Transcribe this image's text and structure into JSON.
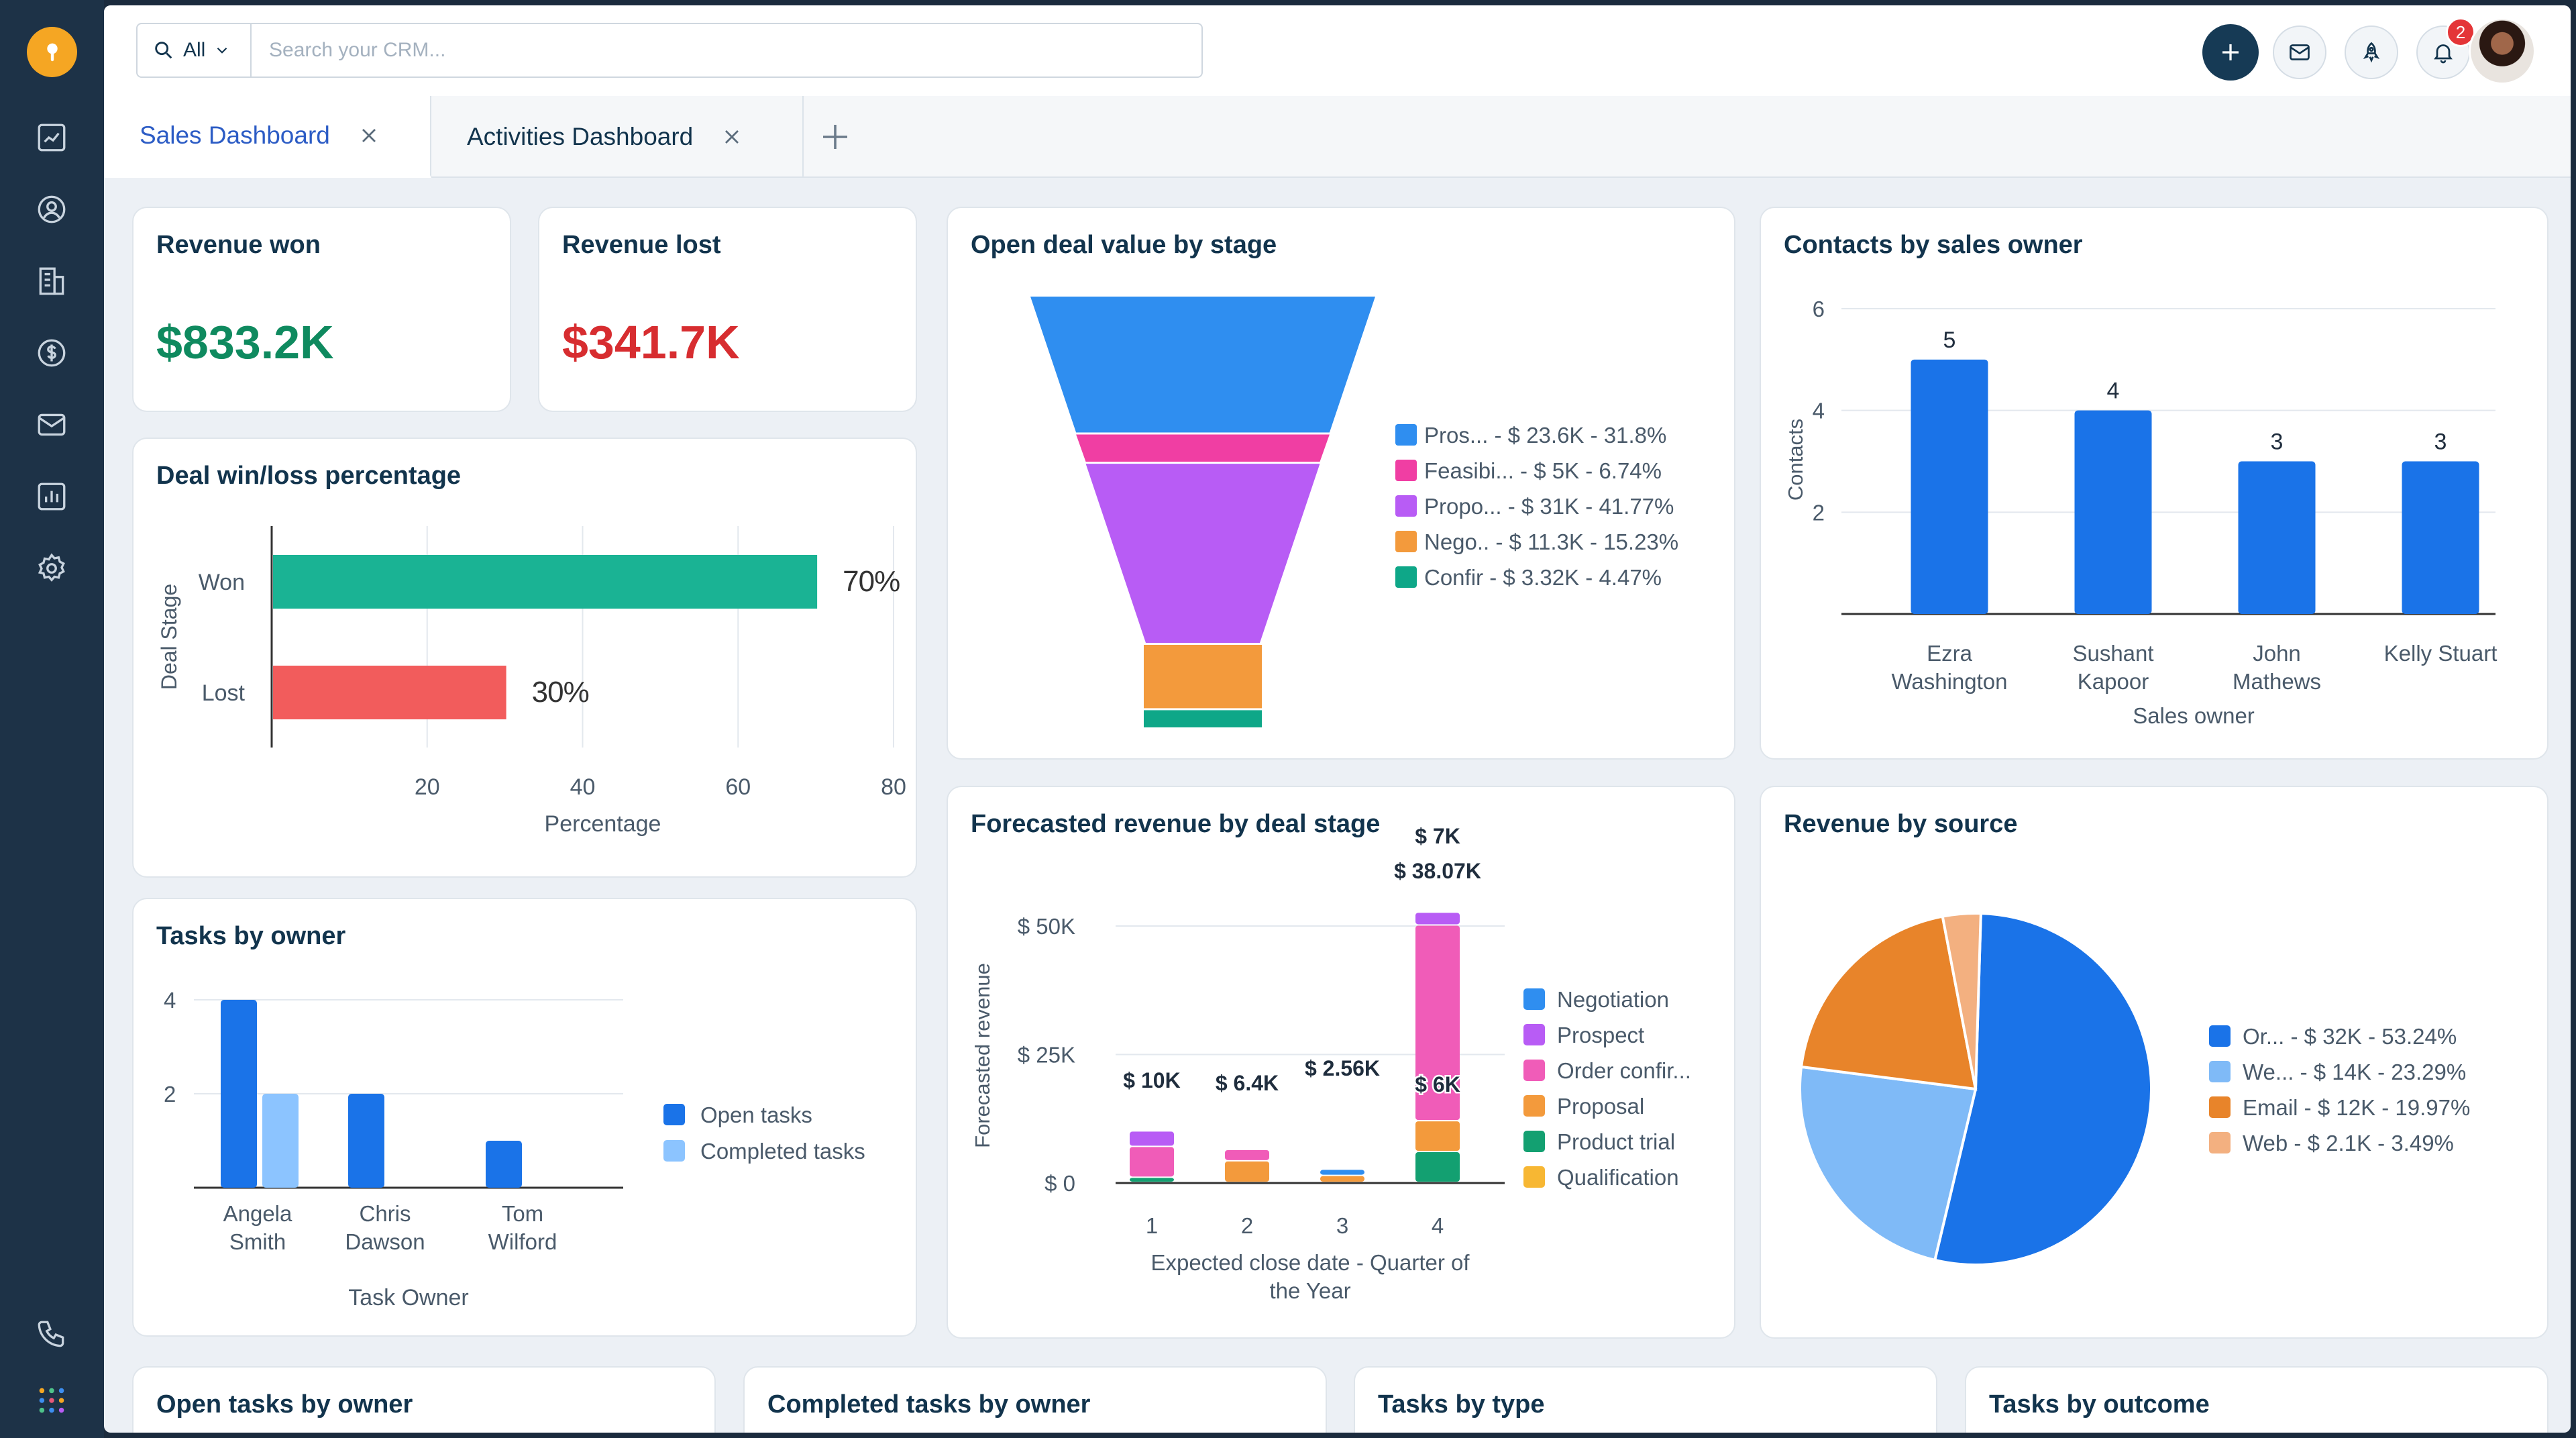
{
  "sidebar": {
    "logo": "freshsales-logo",
    "items": [
      "dashboard-icon",
      "contacts-icon",
      "accounts-icon",
      "deals-icon",
      "email-icon",
      "reports-icon",
      "settings-icon"
    ],
    "bottom": [
      "phone-icon",
      "apps-grid-icon"
    ]
  },
  "search": {
    "scope": "All",
    "placeholder": "Search your CRM..."
  },
  "topbar": {
    "notification_count": "2"
  },
  "tabs": [
    {
      "label": "Sales Dashboard",
      "active": true
    },
    {
      "label": "Activities Dashboard",
      "active": false
    }
  ],
  "kpis": {
    "won": {
      "title": "Revenue won",
      "value": "$833.2K",
      "color": "#0f8a5f"
    },
    "lost": {
      "title": "Revenue lost",
      "value": "$341.7K",
      "color": "#d72d30"
    }
  },
  "cards": {
    "win_loss": "Deal win/loss percentage",
    "tasks_owner": "Tasks by owner",
    "funnel": "Open deal value by stage",
    "forecast": "Forecasted revenue by deal stage",
    "contacts": "Contacts by sales owner",
    "source": "Revenue by source",
    "bottom": [
      "Open tasks by owner",
      "Completed tasks by owner",
      "Tasks by type",
      "Tasks by outcome"
    ]
  },
  "chart_data": [
    {
      "id": "win_loss",
      "type": "bar",
      "orientation": "horizontal",
      "title": "Deal win/loss percentage",
      "categories": [
        "Won",
        "Lost"
      ],
      "values": [
        70,
        30
      ],
      "data_labels": [
        "70%",
        "30%"
      ],
      "colors": [
        "#1ab394",
        "#f25c5c"
      ],
      "xlabel": "Percentage",
      "ylabel": "Deal Stage",
      "xticks": [
        "20",
        "40",
        "60",
        "80"
      ],
      "xlim": [
        0,
        80
      ]
    },
    {
      "id": "tasks_owner",
      "type": "bar",
      "title": "Tasks by owner",
      "categories": [
        [
          "Angela",
          "Smith"
        ],
        [
          "Chris",
          "Dawson"
        ],
        [
          "Tom",
          "Wilford"
        ]
      ],
      "series": [
        {
          "name": "Open tasks",
          "values": [
            4,
            2,
            1
          ],
          "color": "#1a73e8"
        },
        {
          "name": "Completed tasks",
          "values": [
            2,
            0,
            0
          ],
          "color": "#8cc4ff"
        }
      ],
      "xlabel": "Task Owner",
      "yticks": [
        "2",
        "4"
      ],
      "ylim": [
        0,
        4.5
      ],
      "legend": "right"
    },
    {
      "id": "funnel",
      "type": "funnel",
      "title": "Open deal value by stage",
      "stages": [
        {
          "label": "Pros...",
          "detail": "- $ 23.6K - 31.8%",
          "percent": 31.8,
          "color": "#2f8ef0"
        },
        {
          "label": "Feasibi...",
          "detail": "- $ 5K - 6.74%",
          "percent": 6.74,
          "color": "#f03ea3"
        },
        {
          "label": "Propo...",
          "detail": "- $ 31K - 41.77%",
          "percent": 41.77,
          "color": "#b85cf5"
        },
        {
          "label": "Nego..",
          "detail": "- $ 11.3K - 15.23%",
          "percent": 15.23,
          "color": "#f39a3c"
        },
        {
          "label": "Confir",
          "detail": "- $ 3.32K - 4.47%",
          "percent": 4.47,
          "color": "#0ea788"
        }
      ],
      "legend": "right"
    },
    {
      "id": "forecast",
      "type": "bar",
      "stacked": true,
      "title": "Forecasted revenue by deal stage",
      "categories": [
        "1",
        "2",
        "3",
        "4"
      ],
      "series": [
        {
          "name": "Negotiation",
          "values": [
            0,
            0,
            1.2,
            0
          ],
          "color": "#2f8ef0"
        },
        {
          "name": "Prospect",
          "values": [
            3,
            0,
            0,
            2.5
          ],
          "color": "#b85cf5"
        },
        {
          "name": "Order confir...",
          "values": [
            6,
            2.2,
            0,
            38.07
          ],
          "color": "#f05cb8"
        },
        {
          "name": "Proposal",
          "values": [
            0,
            4.2,
            1.36,
            6
          ],
          "color": "#f39a3c"
        },
        {
          "name": "Product trial",
          "values": [
            1,
            0,
            0,
            6
          ],
          "color": "#13a071"
        },
        {
          "name": "Qualification",
          "values": [
            0,
            0,
            0,
            0
          ],
          "color": "#f7b733"
        }
      ],
      "data_labels": [
        {
          "category": "1",
          "text": "$ 10K"
        },
        {
          "category": "2",
          "text": "$ 6.4K"
        },
        {
          "category": "3",
          "text": "$ 2.56K"
        },
        {
          "category": "4",
          "text": "$ 7K"
        },
        {
          "category": "4",
          "text": "$ 38.07K"
        },
        {
          "category": "4",
          "text": "$ 6K"
        }
      ],
      "xlabel": "Expected close date - Quarter of the Year",
      "ylabel": "Forecasted revenue",
      "yticks": [
        "$ 0",
        "$ 25K",
        "$ 50K"
      ],
      "ylim": [
        0,
        58
      ],
      "legend": "right"
    },
    {
      "id": "contacts",
      "type": "bar",
      "title": "Contacts by sales owner",
      "categories": [
        [
          "Ezra",
          "Washington"
        ],
        [
          "Sushant",
          "Kapoor"
        ],
        [
          "John",
          "Mathews"
        ],
        [
          "Kelly Stuart"
        ]
      ],
      "values": [
        5,
        4,
        3,
        3
      ],
      "color": "#1a73e8",
      "xlabel": "Sales owner",
      "ylabel": "Contacts",
      "yticks": [
        "2",
        "4",
        "6"
      ],
      "ylim": [
        0,
        6
      ]
    },
    {
      "id": "source",
      "type": "pie",
      "title": "Revenue by source",
      "slices": [
        {
          "label": "Or...",
          "detail": "- $ 32K - 53.24%",
          "percent": 53.24,
          "color": "#1a73e8"
        },
        {
          "label": "We...",
          "detail": "- $ 14K - 23.29%",
          "percent": 23.29,
          "color": "#7fbaf7"
        },
        {
          "label": "Email",
          "detail": "- $ 12K - 19.97%",
          "percent": 19.97,
          "color": "#e8842a"
        },
        {
          "label": "Web",
          "detail": "- $ 2.1K - 3.49%",
          "percent": 3.49,
          "color": "#f3b080"
        }
      ],
      "legend": "right"
    }
  ]
}
